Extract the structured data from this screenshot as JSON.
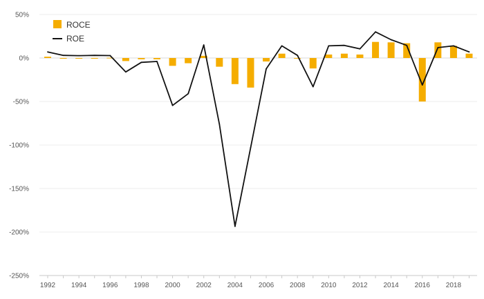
{
  "chart_data": {
    "type": "bar+line",
    "title": "",
    "xlabel": "",
    "ylabel": "",
    "x": [
      1992,
      1993,
      1994,
      1995,
      1996,
      1997,
      1998,
      1999,
      2000,
      2001,
      2002,
      2003,
      2004,
      2005,
      2006,
      2007,
      2008,
      2009,
      2010,
      2011,
      2012,
      2013,
      2014,
      2015,
      2016,
      2017,
      2018,
      2019
    ],
    "x_tick_labels": [
      "1992",
      "1994",
      "1996",
      "1998",
      "2000",
      "2002",
      "2004",
      "2006",
      "2008",
      "2010",
      "2012",
      "2014",
      "2016",
      "2018"
    ],
    "y_tick_labels": [
      "50%",
      "0%",
      "-50%",
      "-100%",
      "-150%",
      "-200%",
      "-250%"
    ],
    "ylim": [
      -250,
      50
    ],
    "y_ticks": [
      50,
      0,
      -50,
      -100,
      -150,
      -200,
      -250
    ],
    "y_unit": "%",
    "grid": "horizontal",
    "legend_position": "top-left",
    "series": [
      {
        "name": "ROCE",
        "kind": "bar",
        "color": "#f5ad00",
        "values": [
          1.5,
          -0.8,
          -0.5,
          -0.3,
          0.3,
          -3.5,
          -1.5,
          -1.5,
          -9,
          -6,
          2.5,
          -10,
          -30,
          -34,
          -4,
          5,
          -0.5,
          -12,
          4,
          5,
          4,
          18.5,
          18,
          17,
          -50,
          18,
          14,
          5
        ]
      },
      {
        "name": "ROE",
        "kind": "line",
        "color": "#111111",
        "values": [
          7,
          3,
          2.7,
          3,
          2.8,
          -16,
          -5,
          -4,
          -54.5,
          -41,
          15,
          -76,
          -193.5,
          -103,
          -12.5,
          14,
          3,
          -33,
          14,
          14.5,
          10.5,
          30,
          21,
          14.5,
          -31,
          12,
          14,
          7
        ]
      }
    ]
  },
  "legend": {
    "roce_label": "ROCE",
    "roe_label": "ROE"
  }
}
